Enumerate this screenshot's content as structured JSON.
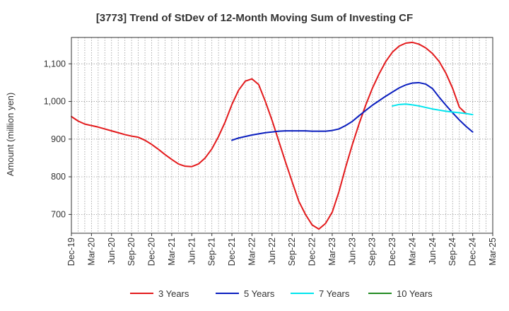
{
  "chart_data": {
    "type": "line",
    "title": "[3773]  Trend of StDev of 12-Month Moving Sum of Investing CF",
    "ylabel": "Amount (million yen)",
    "xlabel": "",
    "x_start": "2019-12",
    "x_end": "2025-03",
    "ylim": [
      650,
      1170
    ],
    "yticks": [
      700,
      800,
      900,
      1000,
      1100
    ],
    "ytick_labels": [
      "700",
      "800",
      "900",
      "1,000",
      "1,100"
    ],
    "xtick_labels": [
      "Dec-19",
      "Mar-20",
      "Jun-20",
      "Sep-20",
      "Dec-20",
      "Mar-21",
      "Jun-21",
      "Sep-21",
      "Dec-21",
      "Mar-22",
      "Jun-22",
      "Sep-22",
      "Dec-22",
      "Mar-23",
      "Jun-23",
      "Sep-23",
      "Dec-23",
      "Mar-24",
      "Jun-24",
      "Sep-24",
      "Dec-24",
      "Mar-25"
    ],
    "grid": true,
    "legend_position": "bottom",
    "series": [
      {
        "name": "3 Years",
        "color": "#e31a1c",
        "points": [
          [
            "2019-12",
            960
          ],
          [
            "2020-01",
            948
          ],
          [
            "2020-02",
            940
          ],
          [
            "2020-03",
            936
          ],
          [
            "2020-04",
            932
          ],
          [
            "2020-05",
            927
          ],
          [
            "2020-06",
            922
          ],
          [
            "2020-07",
            917
          ],
          [
            "2020-08",
            912
          ],
          [
            "2020-09",
            908
          ],
          [
            "2020-10",
            905
          ],
          [
            "2020-11",
            897
          ],
          [
            "2020-12",
            886
          ],
          [
            "2021-01",
            873
          ],
          [
            "2021-02",
            859
          ],
          [
            "2021-03",
            846
          ],
          [
            "2021-04",
            834
          ],
          [
            "2021-05",
            828
          ],
          [
            "2021-06",
            827
          ],
          [
            "2021-07",
            834
          ],
          [
            "2021-08",
            850
          ],
          [
            "2021-09",
            874
          ],
          [
            "2021-10",
            907
          ],
          [
            "2021-11",
            946
          ],
          [
            "2021-12",
            992
          ],
          [
            "2022-01",
            1030
          ],
          [
            "2022-02",
            1054
          ],
          [
            "2022-03",
            1060
          ],
          [
            "2022-04",
            1045
          ],
          [
            "2022-05",
            1000
          ],
          [
            "2022-06",
            950
          ],
          [
            "2022-07",
            895
          ],
          [
            "2022-08",
            840
          ],
          [
            "2022-09",
            787
          ],
          [
            "2022-10",
            735
          ],
          [
            "2022-11",
            700
          ],
          [
            "2022-12",
            672
          ],
          [
            "2023-01",
            661
          ],
          [
            "2023-02",
            676
          ],
          [
            "2023-03",
            706
          ],
          [
            "2023-04",
            760
          ],
          [
            "2023-05",
            825
          ],
          [
            "2023-06",
            885
          ],
          [
            "2023-07",
            940
          ],
          [
            "2023-08",
            990
          ],
          [
            "2023-09",
            1035
          ],
          [
            "2023-10",
            1073
          ],
          [
            "2023-11",
            1106
          ],
          [
            "2023-12",
            1131
          ],
          [
            "2024-01",
            1147
          ],
          [
            "2024-02",
            1155
          ],
          [
            "2024-03",
            1157
          ],
          [
            "2024-04",
            1152
          ],
          [
            "2024-05",
            1142
          ],
          [
            "2024-06",
            1127
          ],
          [
            "2024-07",
            1106
          ],
          [
            "2024-08",
            1075
          ],
          [
            "2024-09",
            1035
          ],
          [
            "2024-10",
            985
          ],
          [
            "2024-11",
            968
          ]
        ]
      },
      {
        "name": "5 Years",
        "color": "#0a1ebf",
        "points": [
          [
            "2021-12",
            897
          ],
          [
            "2022-01",
            903
          ],
          [
            "2022-02",
            907
          ],
          [
            "2022-03",
            911
          ],
          [
            "2022-04",
            914
          ],
          [
            "2022-05",
            917
          ],
          [
            "2022-06",
            919
          ],
          [
            "2022-07",
            921
          ],
          [
            "2022-08",
            922
          ],
          [
            "2022-09",
            922
          ],
          [
            "2022-10",
            922
          ],
          [
            "2022-11",
            922
          ],
          [
            "2022-12",
            921
          ],
          [
            "2023-01",
            921
          ],
          [
            "2023-02",
            921
          ],
          [
            "2023-03",
            923
          ],
          [
            "2023-04",
            927
          ],
          [
            "2023-05",
            936
          ],
          [
            "2023-06",
            947
          ],
          [
            "2023-07",
            962
          ],
          [
            "2023-08",
            976
          ],
          [
            "2023-09",
            990
          ],
          [
            "2023-10",
            1002
          ],
          [
            "2023-11",
            1014
          ],
          [
            "2023-12",
            1025
          ],
          [
            "2024-01",
            1036
          ],
          [
            "2024-02",
            1044
          ],
          [
            "2024-03",
            1049
          ],
          [
            "2024-04",
            1050
          ],
          [
            "2024-05",
            1046
          ],
          [
            "2024-06",
            1034
          ],
          [
            "2024-07",
            1011
          ],
          [
            "2024-08",
            990
          ],
          [
            "2024-09",
            970
          ],
          [
            "2024-10",
            951
          ],
          [
            "2024-11",
            934
          ],
          [
            "2024-12",
            919
          ]
        ]
      },
      {
        "name": "7 Years",
        "color": "#00e5ee",
        "points": [
          [
            "2023-12",
            988
          ],
          [
            "2024-01",
            992
          ],
          [
            "2024-02",
            993
          ],
          [
            "2024-03",
            991
          ],
          [
            "2024-04",
            988
          ],
          [
            "2024-05",
            984
          ],
          [
            "2024-06",
            980
          ],
          [
            "2024-07",
            977
          ],
          [
            "2024-08",
            974
          ],
          [
            "2024-09",
            972
          ],
          [
            "2024-10",
            970
          ],
          [
            "2024-11",
            968
          ],
          [
            "2024-12",
            965
          ]
        ]
      },
      {
        "name": "10 Years",
        "color": "#228b22",
        "points": []
      }
    ]
  }
}
